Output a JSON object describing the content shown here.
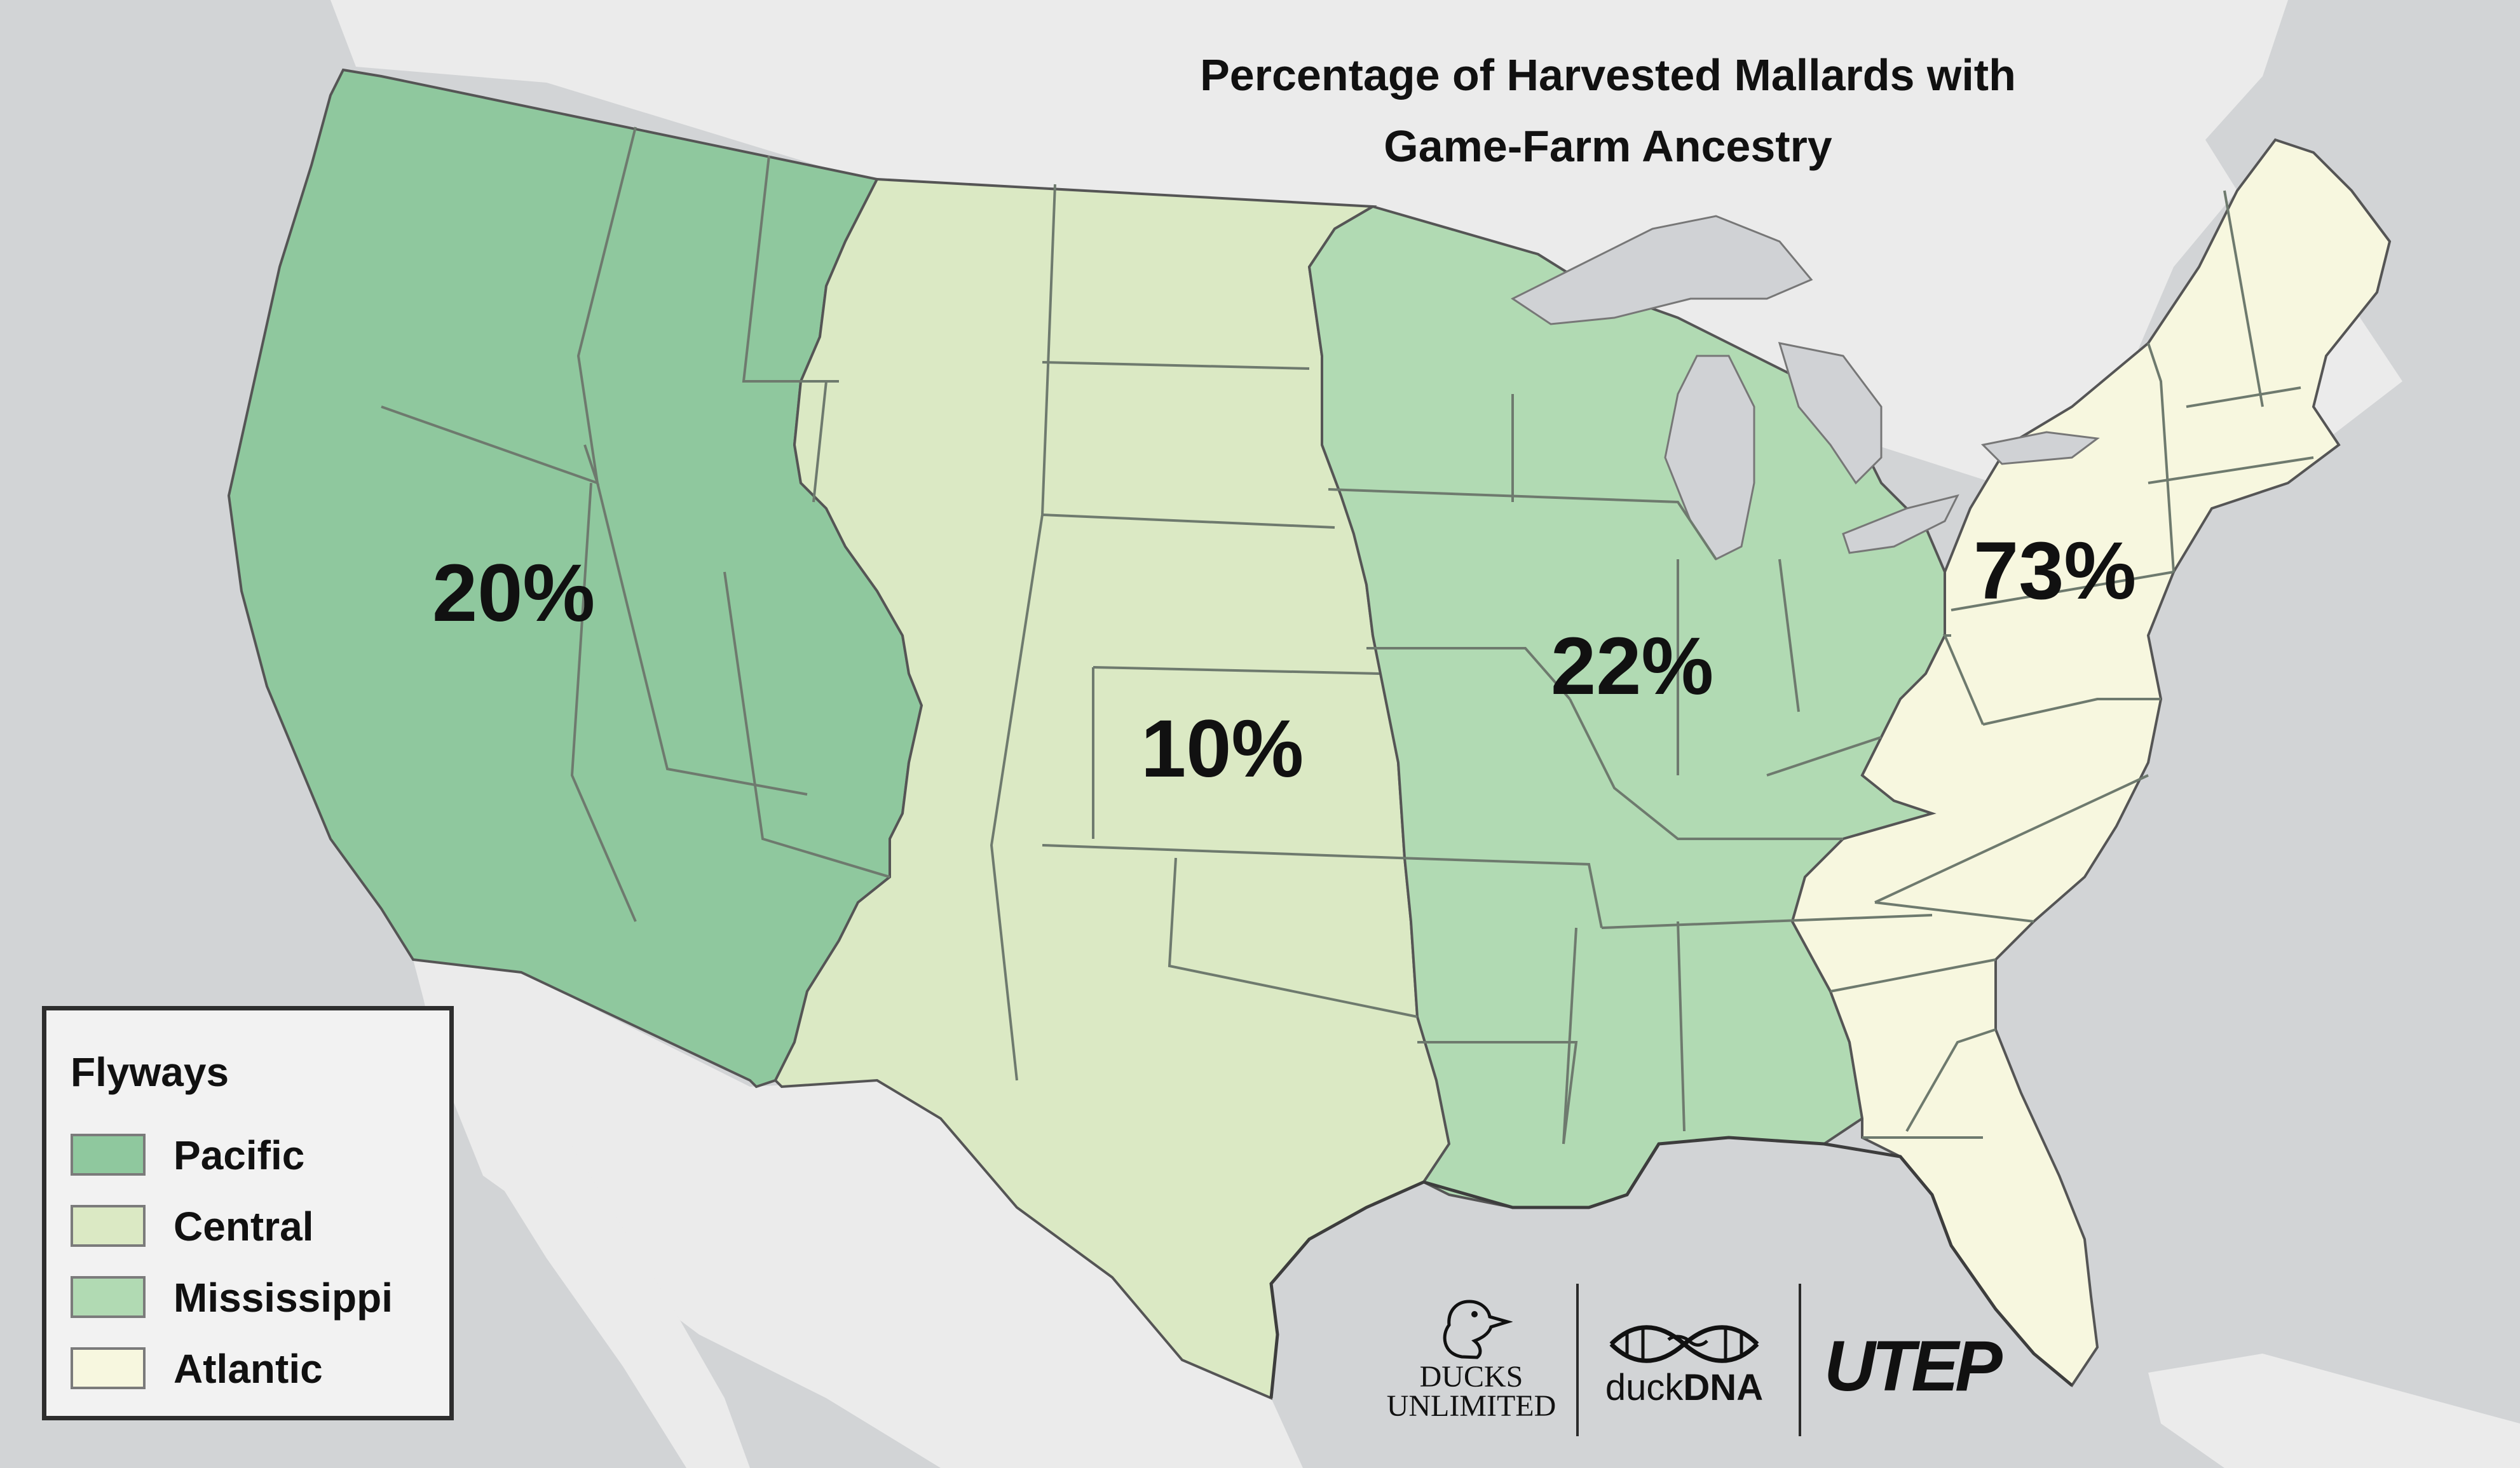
{
  "title_lines": [
    "Percentage of Harvested Mallards with",
    "Game-Farm Ancestry"
  ],
  "colors": {
    "water": "#d2d4d6",
    "land": "#ebebeb",
    "pacific": "#8fc89e",
    "central": "#dbe9c4",
    "mississippi": "#b1dab3",
    "atlantic": "#f7f7df",
    "state_border": "#6e7a6e",
    "lake": "#d0d2d5"
  },
  "flyways": [
    {
      "name": "Pacific",
      "percent": "20%",
      "color": "#8fc89e"
    },
    {
      "name": "Central",
      "percent": "10%",
      "color": "#dbe9c4"
    },
    {
      "name": "Mississippi",
      "percent": "22%",
      "color": "#b1dab3"
    },
    {
      "name": "Atlantic",
      "percent": "73%",
      "color": "#f7f7df"
    }
  ],
  "legend": {
    "heading": "Flyways",
    "items": [
      "Pacific",
      "Central",
      "Mississippi",
      "Atlantic"
    ]
  },
  "logos": {
    "ducks_unlimited": {
      "icon": "duck-head-icon",
      "line1": "DUCKS",
      "line2": "UNLIMITED"
    },
    "duckdna": {
      "icon": "dna-helix-icon",
      "prefix": "duck",
      "suffix": "DNA"
    },
    "utep": {
      "text": "UTEP"
    }
  }
}
